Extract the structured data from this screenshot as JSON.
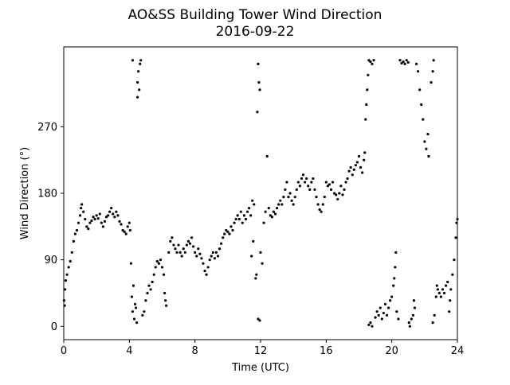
{
  "chart_data": {
    "type": "scatter",
    "title": "AO&SS Building Tower Wind Direction",
    "subtitle": "2016-09-22",
    "x_label": "Time (UTC)",
    "y_label": "Wind Direction (°)",
    "color": "#000000",
    "xlim": [
      0,
      24
    ],
    "xticks": [
      0,
      4,
      8,
      12,
      16,
      20,
      24
    ],
    "ylim": [
      -18,
      378
    ],
    "yticks": [
      0,
      90,
      180,
      270
    ],
    "x": [
      0.02,
      0.05,
      0.08,
      0.12,
      0.2,
      0.3,
      0.4,
      0.5,
      0.6,
      0.7,
      0.8,
      0.9,
      1.0,
      1.05,
      1.1,
      1.2,
      1.3,
      1.4,
      1.5,
      1.6,
      1.7,
      1.8,
      1.9,
      2.0,
      2.1,
      2.2,
      2.3,
      2.4,
      2.5,
      2.6,
      2.7,
      2.8,
      2.9,
      3.0,
      3.1,
      3.2,
      3.3,
      3.4,
      3.5,
      3.6,
      3.7,
      3.8,
      3.9,
      4.0,
      4.05,
      4.1,
      4.15,
      4.2,
      4.25,
      4.3,
      4.35,
      4.4,
      4.45,
      4.2,
      4.5,
      4.55,
      4.6,
      4.65,
      4.7,
      4.5,
      4.8,
      4.9,
      5.0,
      5.1,
      5.2,
      5.3,
      5.4,
      5.5,
      5.6,
      5.7,
      5.8,
      5.9,
      6.0,
      6.1,
      6.15,
      6.2,
      6.25,
      6.4,
      6.5,
      6.6,
      6.7,
      6.8,
      6.9,
      7.0,
      7.1,
      7.2,
      7.3,
      7.4,
      7.5,
      7.6,
      7.7,
      7.8,
      7.9,
      8.0,
      8.1,
      8.2,
      8.3,
      8.4,
      8.5,
      8.6,
      8.7,
      8.8,
      8.9,
      9.0,
      9.1,
      9.2,
      9.3,
      9.4,
      9.5,
      9.6,
      9.7,
      9.8,
      9.9,
      10.0,
      10.1,
      10.2,
      10.3,
      10.4,
      10.5,
      10.6,
      10.7,
      10.8,
      10.9,
      11.0,
      11.1,
      11.2,
      11.3,
      11.4,
      11.5,
      11.45,
      11.55,
      11.6,
      11.7,
      11.75,
      11.85,
      11.9,
      11.95,
      11.8,
      11.85,
      11.95,
      12.0,
      12.1,
      12.2,
      12.3,
      12.4,
      12.5,
      12.6,
      12.7,
      12.8,
      12.9,
      13.0,
      13.1,
      13.2,
      13.3,
      13.4,
      13.5,
      13.6,
      13.7,
      13.8,
      13.9,
      14.0,
      14.1,
      14.2,
      14.3,
      14.4,
      14.5,
      14.6,
      14.7,
      14.8,
      14.9,
      15.0,
      15.1,
      15.2,
      15.3,
      15.4,
      15.5,
      15.6,
      15.7,
      15.8,
      15.9,
      16.0,
      16.1,
      16.2,
      16.3,
      16.4,
      16.5,
      16.6,
      16.7,
      16.8,
      16.9,
      17.0,
      17.1,
      17.2,
      17.3,
      17.4,
      17.5,
      17.6,
      17.7,
      17.8,
      17.9,
      18.0,
      18.1,
      18.2,
      18.3,
      18.35,
      18.4,
      18.45,
      18.5,
      18.55,
      18.6,
      18.7,
      18.8,
      18.9,
      18.6,
      18.7,
      18.8,
      19.0,
      19.1,
      19.2,
      19.3,
      19.4,
      19.5,
      19.6,
      19.7,
      19.8,
      19.9,
      20.0,
      20.1,
      20.15,
      20.2,
      20.25,
      20.3,
      20.4,
      20.5,
      20.6,
      20.7,
      20.8,
      20.9,
      21.0,
      21.05,
      21.1,
      21.2,
      21.3,
      21.35,
      21.4,
      21.5,
      21.6,
      21.7,
      21.8,
      21.9,
      22.0,
      22.1,
      22.2,
      22.25,
      22.4,
      22.5,
      22.55,
      22.5,
      22.6,
      22.7,
      22.75,
      22.8,
      22.9,
      23.0,
      23.1,
      23.2,
      23.3,
      23.4,
      23.5,
      23.55,
      23.6,
      23.7,
      23.8,
      23.9,
      23.95,
      24.0
    ],
    "values": [
      35,
      28,
      50,
      62,
      70,
      80,
      88,
      100,
      115,
      125,
      130,
      140,
      150,
      160,
      165,
      155,
      145,
      135,
      132,
      140,
      143,
      148,
      145,
      150,
      146,
      152,
      140,
      135,
      142,
      148,
      150,
      155,
      160,
      152,
      148,
      155,
      150,
      142,
      138,
      130,
      128,
      125,
      135,
      140,
      130,
      85,
      40,
      20,
      55,
      10,
      30,
      25,
      5,
      360,
      330,
      345,
      320,
      355,
      360,
      310,
      15,
      20,
      35,
      45,
      55,
      50,
      60,
      70,
      80,
      88,
      85,
      90,
      80,
      70,
      45,
      35,
      28,
      100,
      115,
      120,
      110,
      105,
      100,
      110,
      100,
      95,
      105,
      100,
      110,
      115,
      112,
      120,
      108,
      100,
      95,
      105,
      98,
      92,
      85,
      75,
      70,
      80,
      90,
      95,
      100,
      92,
      100,
      95,
      105,
      112,
      120,
      125,
      130,
      128,
      125,
      135,
      130,
      140,
      145,
      150,
      145,
      155,
      140,
      150,
      145,
      155,
      160,
      150,
      170,
      95,
      115,
      165,
      65,
      70,
      355,
      330,
      320,
      290,
      10,
      8,
      100,
      85,
      140,
      155,
      230,
      160,
      150,
      148,
      155,
      152,
      160,
      165,
      170,
      165,
      175,
      185,
      195,
      175,
      180,
      170,
      165,
      175,
      185,
      195,
      190,
      200,
      205,
      195,
      200,
      190,
      185,
      195,
      200,
      185,
      175,
      165,
      158,
      155,
      165,
      175,
      195,
      190,
      192,
      185,
      195,
      180,
      178,
      172,
      180,
      190,
      178,
      185,
      195,
      200,
      210,
      215,
      205,
      212,
      218,
      222,
      230,
      215,
      208,
      225,
      235,
      280,
      300,
      320,
      340,
      360,
      358,
      355,
      360,
      2,
      5,
      0,
      12,
      20,
      15,
      25,
      10,
      18,
      30,
      15,
      25,
      35,
      40,
      55,
      65,
      80,
      100,
      20,
      10,
      360,
      356,
      358,
      355,
      360,
      357,
      5,
      0,
      10,
      15,
      35,
      25,
      355,
      345,
      320,
      300,
      280,
      250,
      240,
      260,
      230,
      330,
      345,
      360,
      5,
      15,
      40,
      55,
      50,
      45,
      40,
      50,
      45,
      55,
      60,
      20,
      35,
      50,
      70,
      90,
      120,
      140,
      145
    ]
  }
}
